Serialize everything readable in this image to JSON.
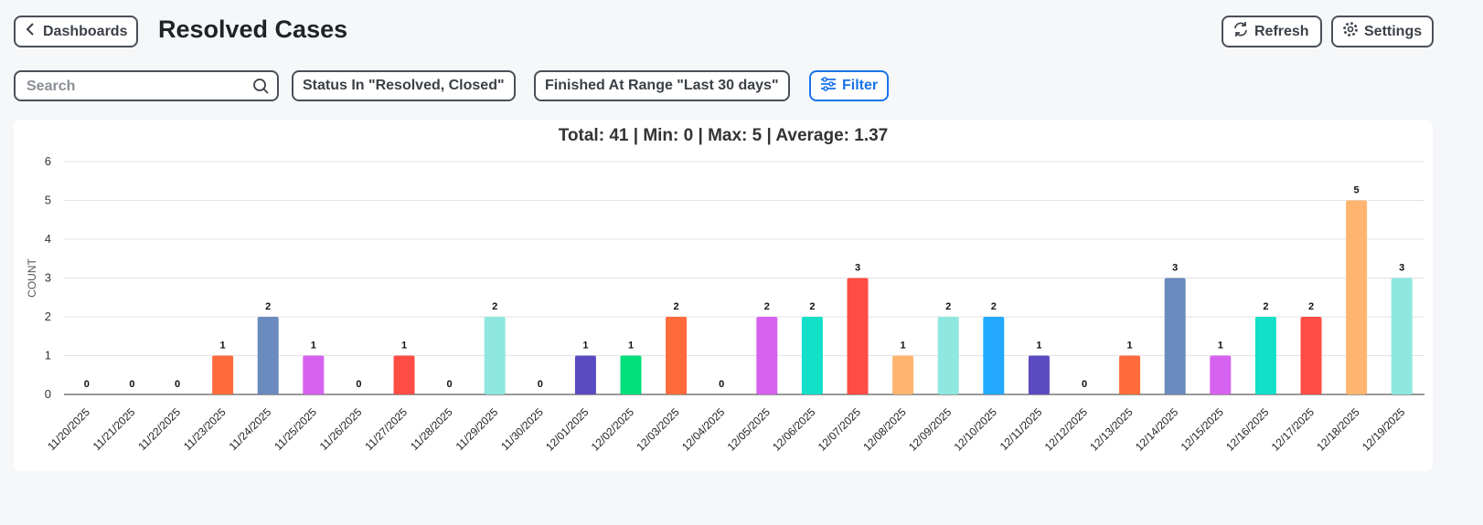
{
  "header": {
    "back_label": "Dashboards",
    "title": "Resolved Cases",
    "refresh_label": "Refresh",
    "settings_label": "Settings"
  },
  "filters": {
    "search_placeholder": "Search",
    "search_value": "",
    "status_chip": "Status In \"Resolved, Closed\"",
    "range_chip": "Finished At Range \"Last 30 days\"",
    "filter_label": "Filter"
  },
  "colors": {
    "accent": "#1a73e8"
  },
  "chart_data": {
    "type": "bar",
    "title": "Total: 41 | Min: 0 | Max: 5 | Average: 1.37",
    "ylabel": "COUNT",
    "xlabel": "",
    "ylim": [
      0,
      6
    ],
    "yticks": [
      0,
      1,
      2,
      3,
      4,
      5,
      6
    ],
    "grid": true,
    "categories": [
      "11/20/2025",
      "11/21/2025",
      "11/22/2025",
      "11/23/2025",
      "11/24/2025",
      "11/25/2025",
      "11/26/2025",
      "11/27/2025",
      "11/28/2025",
      "11/29/2025",
      "11/30/2025",
      "12/01/2025",
      "12/02/2025",
      "12/03/2025",
      "12/04/2025",
      "12/05/2025",
      "12/06/2025",
      "12/07/2025",
      "12/08/2025",
      "12/09/2025",
      "12/10/2025",
      "12/11/2025",
      "12/12/2025",
      "12/13/2025",
      "12/14/2025",
      "12/15/2025",
      "12/16/2025",
      "12/17/2025",
      "12/18/2025",
      "12/19/2025"
    ],
    "values": [
      0,
      0,
      0,
      1,
      2,
      1,
      0,
      1,
      0,
      2,
      0,
      1,
      1,
      2,
      0,
      2,
      2,
      3,
      1,
      2,
      2,
      1,
      0,
      1,
      3,
      1,
      2,
      2,
      5,
      3
    ],
    "bar_colors": [
      "#ff6b3b",
      "#ff6b3b",
      "#ff6b3b",
      "#ff6b3b",
      "#6b8abd",
      "#d662f0",
      "#ff4c45",
      "#ff4c45",
      "#8ee8e0",
      "#8ee8e0",
      "#5a4bc2",
      "#5a4bc2",
      "#00e07a",
      "#ff6b3b",
      "#ff6b3b",
      "#d662f0",
      "#12e0c8",
      "#ff4c45",
      "#ffb570",
      "#8ee8e0",
      "#23a9ff",
      "#5a4bc2",
      "#5a4bc2",
      "#ff6b3b",
      "#6b8abd",
      "#d662f0",
      "#12e0c8",
      "#ff4c45",
      "#ffb570",
      "#8ee8e0"
    ]
  }
}
